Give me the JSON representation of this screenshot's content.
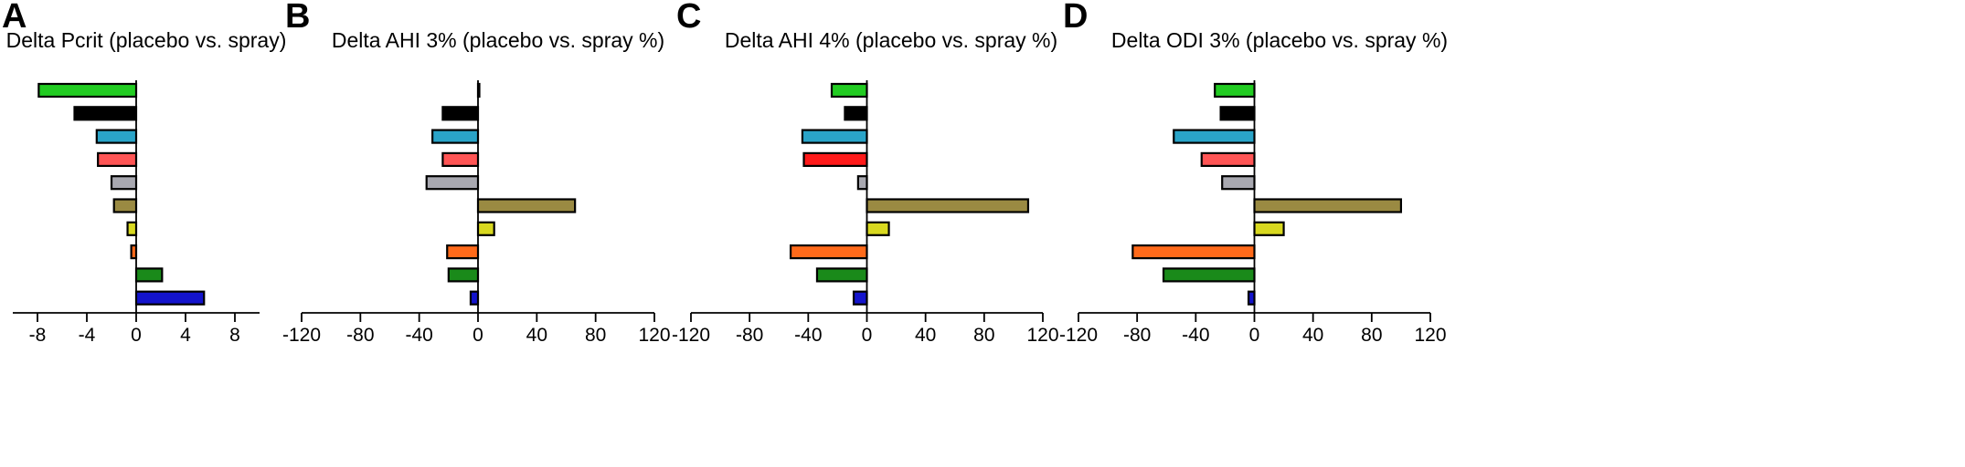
{
  "chart_data": [
    {
      "type": "bar",
      "orientation": "horizontal",
      "panel": "A",
      "title": "Delta Pcrit (placebo vs. spray)",
      "xlim": [
        -10,
        10
      ],
      "xticks": [
        "-8",
        "-4",
        "0",
        "4",
        "8"
      ],
      "xtick_values": [
        -8,
        -4,
        0,
        4,
        8
      ],
      "grid": false,
      "values": [
        -7.9,
        -5.0,
        -3.2,
        -3.1,
        -2.0,
        -1.8,
        -0.7,
        -0.4,
        2.1,
        5.5
      ],
      "colors": [
        "#22cc22",
        "#000000",
        "#2aa4c8",
        "#ff5555",
        "#a8a8b0",
        "#9a8a42",
        "#d8d820",
        "#ff6a1a",
        "#1a8a1a",
        "#1414cc"
      ]
    },
    {
      "type": "bar",
      "orientation": "horizontal",
      "panel": "B",
      "title": "Delta AHI 3% (placebo vs. spray %)",
      "xlim": [
        -120,
        120
      ],
      "xticks": [
        "-120",
        "-80",
        "-40",
        "0",
        "40",
        "80",
        "120"
      ],
      "xtick_values": [
        -120,
        -80,
        -40,
        0,
        40,
        80,
        120
      ],
      "grid": false,
      "values": [
        0.5,
        -24,
        -31,
        -24,
        -35,
        66,
        11,
        -21,
        -20,
        -5
      ],
      "colors": [
        "#22cc22",
        "#000000",
        "#2aa4c8",
        "#ff5555",
        "#a8a8b0",
        "#9a8a42",
        "#d8d820",
        "#ff6a1a",
        "#1a8a1a",
        "#1414cc"
      ]
    },
    {
      "type": "bar",
      "orientation": "horizontal",
      "panel": "C",
      "title": "Delta AHI 4% (placebo vs. spray %)",
      "xlim": [
        -120,
        120
      ],
      "xticks": [
        "-120",
        "-80",
        "-40",
        "0",
        "40",
        "80",
        "120"
      ],
      "xtick_values": [
        -120,
        -80,
        -40,
        0,
        40,
        80,
        120
      ],
      "grid": false,
      "values": [
        -24,
        -15,
        -44,
        -43,
        -6,
        110,
        15,
        -52,
        -34,
        -9
      ],
      "colors": [
        "#22cc22",
        "#000000",
        "#2aa4c8",
        "#ff1a1a",
        "#a8a8b0",
        "#9a8a42",
        "#d8d820",
        "#ff6a1a",
        "#1a8a1a",
        "#1414cc"
      ]
    },
    {
      "type": "bar",
      "orientation": "horizontal",
      "panel": "D",
      "title": "Delta ODI 3% (placebo vs. spray %)",
      "xlim": [
        -120,
        120
      ],
      "xticks": [
        "-120",
        "-80",
        "-40",
        "0",
        "40",
        "80",
        "120"
      ],
      "xtick_values": [
        -120,
        -80,
        -40,
        0,
        40,
        80,
        120
      ],
      "grid": false,
      "values": [
        -27,
        -23,
        -55,
        -36,
        -22,
        100,
        20,
        -83,
        -62,
        -4
      ],
      "colors": [
        "#22cc22",
        "#000000",
        "#2aa4c8",
        "#ff5555",
        "#a8a8b0",
        "#9a8a42",
        "#d8d820",
        "#ff6a1a",
        "#1a8a1a",
        "#1414cc"
      ]
    }
  ]
}
